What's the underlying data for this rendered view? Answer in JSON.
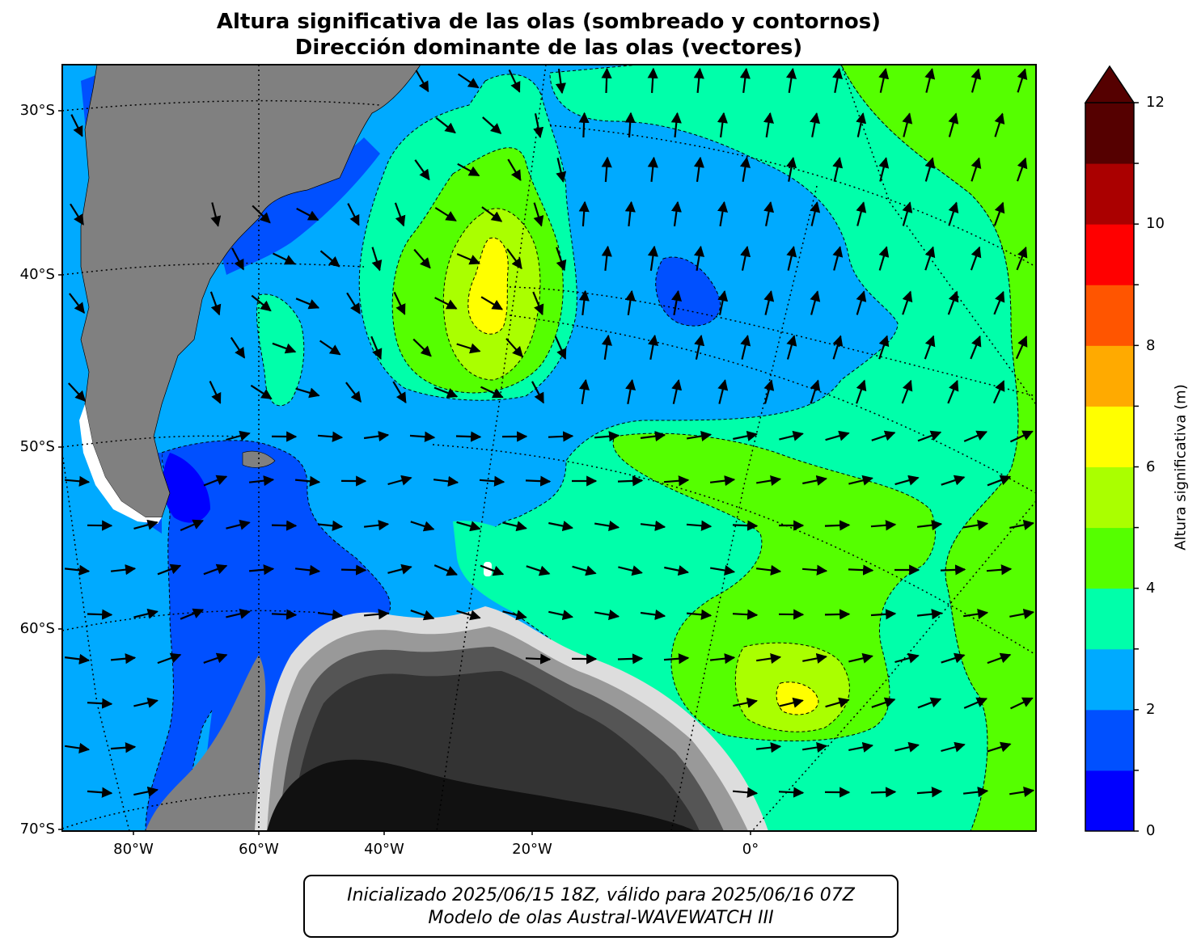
{
  "title": {
    "line1": "Altura significativa de las olas (sombreado y contornos)",
    "line2": "Dirección dominante de las olas (vectores)"
  },
  "axes": {
    "lat_labels": [
      "30°S",
      "40°S",
      "50°S",
      "60°S",
      "70°S"
    ],
    "lon_labels": [
      "80°W",
      "60°W",
      "40°W",
      "20°W",
      "0°"
    ]
  },
  "colorbar": {
    "label": "Altura significativa (m)",
    "tick_labels": [
      "0",
      "2",
      "4",
      "6",
      "8",
      "10",
      "12"
    ],
    "extend": "max",
    "levels": [
      0,
      1,
      2,
      3,
      4,
      5,
      6,
      7,
      8,
      9,
      10,
      11,
      12
    ],
    "colors": [
      "#0000ff",
      "#0050ff",
      "#00aaff",
      "#00ffaa",
      "#55ff00",
      "#aaff00",
      "#ffff00",
      "#ffaa00",
      "#ff5500",
      "#ff0000",
      "#aa0000",
      "#550000"
    ],
    "extend_color": "#550000"
  },
  "footer": {
    "line1": "Inicializado 2025/06/15 18Z, válido para 2025/06/16 07Z",
    "line2": "Modelo de olas Austral-WAVEWATCH III"
  },
  "map": {
    "region": "South Atlantic / Drake Passage",
    "land_color": "#808080",
    "ice_shades": [
      "#111111",
      "#333333",
      "#555555",
      "#777777",
      "#999999",
      "#bbbbbb",
      "#dddddd",
      "#ffffff"
    ],
    "max_wave_height_areas": [
      "west of 20°W near 42°S",
      "east of 0° near 64°S"
    ]
  }
}
